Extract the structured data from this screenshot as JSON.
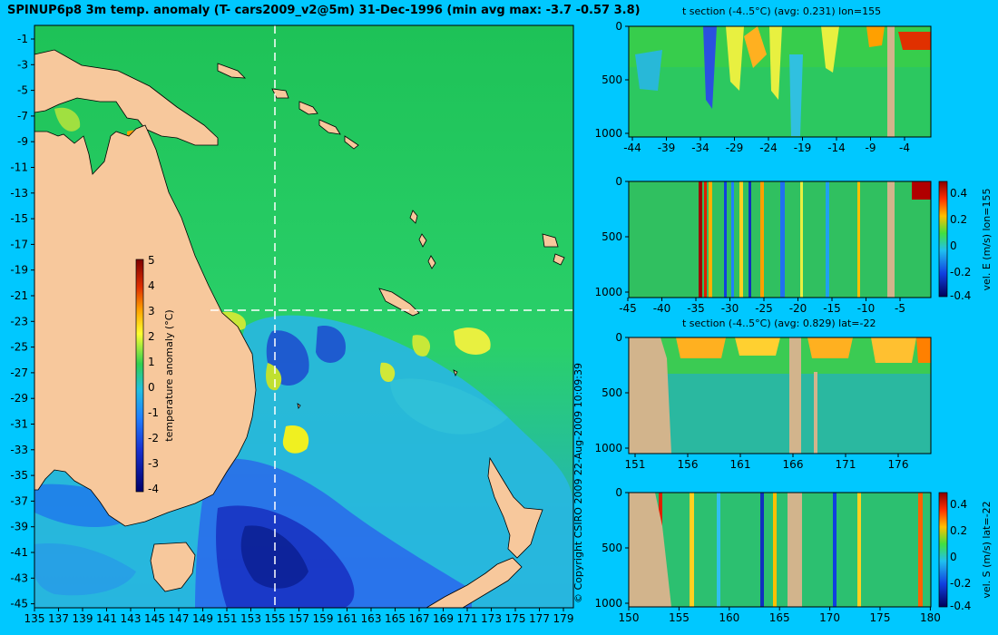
{
  "title": "SPINUP6p8 3m temp. anomaly (T- cars2009_v2@5m) 31-Dec-1996 (min avg max: -3.7 -0.57 3.8)",
  "copyright": "© Copyright CSIRO 2009  22-Aug-2009 10:09:39",
  "colors": {
    "background": "#00c8ff",
    "land": "#f7c89c",
    "section_land": "#d2b48c",
    "ocean_base": "#22c25a"
  },
  "map": {
    "lat_ticks": [
      "-1",
      "-3",
      "-5",
      "-7",
      "-9",
      "-11",
      "-13",
      "-15",
      "-17",
      "-19",
      "-21",
      "-23",
      "-25",
      "-27",
      "-29",
      "-31",
      "-33",
      "-35",
      "-37",
      "-39",
      "-41",
      "-43",
      "-45"
    ],
    "lon_ticks": [
      "135",
      "137",
      "139",
      "141",
      "143",
      "145",
      "147",
      "149",
      "151",
      "153",
      "155",
      "157",
      "159",
      "161",
      "163",
      "165",
      "167",
      "169",
      "171",
      "173",
      "175",
      "177",
      "179"
    ],
    "section_lon": 155,
    "section_lat": -22,
    "colorbar": {
      "label": "temperature anomaly (°C)",
      "ticks": [
        "5",
        "4",
        "3",
        "2",
        "1",
        "0",
        "-1",
        "-2",
        "-3",
        "-4"
      ]
    }
  },
  "panels": [
    {
      "title": "t section (-4..5°C) (avg: 0.231) lon=155",
      "x_ticks": [
        "-44",
        "-39",
        "-34",
        "-29",
        "-24",
        "-19",
        "-14",
        "-9",
        "-4"
      ],
      "y_ticks": [
        "0",
        "500",
        "1000"
      ]
    },
    {
      "title": "",
      "x_ticks": [
        "-45",
        "-40",
        "-35",
        "-30",
        "-25",
        "-20",
        "-15",
        "-10",
        "-5"
      ],
      "y_ticks": [
        "0",
        "500",
        "1000"
      ],
      "colorbar": {
        "label": "vel. E (m/s) lon=155",
        "ticks": [
          "0.4",
          "0.2",
          "0",
          "-0.2",
          "-0.4"
        ]
      }
    },
    {
      "title": "t section (-4..5°C) (avg: 0.829) lat=-22",
      "x_ticks": [
        "151",
        "156",
        "161",
        "166",
        "171",
        "176"
      ],
      "y_ticks": [
        "0",
        "500",
        "1000"
      ]
    },
    {
      "title": "",
      "x_ticks": [
        "150",
        "155",
        "160",
        "165",
        "170",
        "175",
        "180"
      ],
      "y_ticks": [
        "0",
        "500",
        "1000"
      ],
      "colorbar": {
        "label": "vel. S (m/s) lat=-22",
        "ticks": [
          "0.4",
          "0.2",
          "0",
          "-0.2",
          "-0.4"
        ]
      }
    }
  ]
}
